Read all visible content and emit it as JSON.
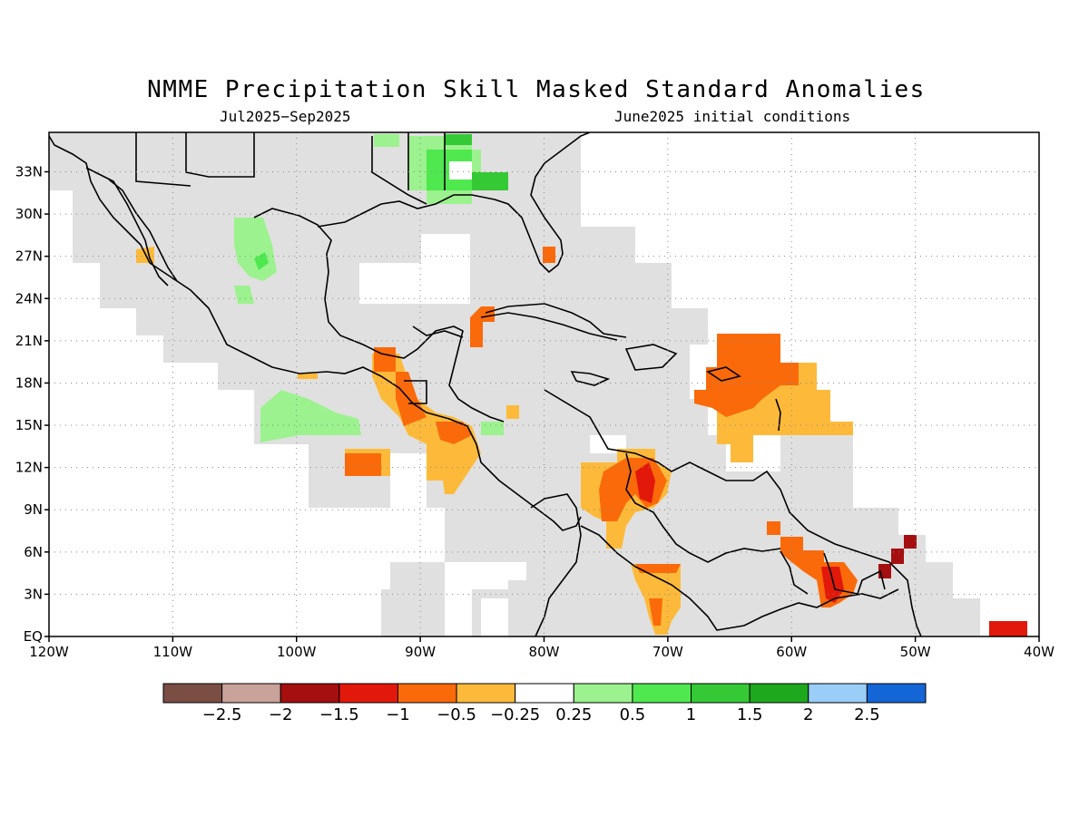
{
  "title": "NMME Precipitation Skill Masked Standard Anomalies",
  "subtitle_left": "Jul2025−Sep2025",
  "subtitle_right": "June2025 initial conditions",
  "map": {
    "lon_range": [
      -120,
      -40
    ],
    "lat_range": [
      0,
      35
    ],
    "lon_ticks": [
      {
        "value": -120,
        "label": "120W"
      },
      {
        "value": -110,
        "label": "110W"
      },
      {
        "value": -100,
        "label": "100W"
      },
      {
        "value": -90,
        "label": "90W"
      },
      {
        "value": -80,
        "label": "80W"
      },
      {
        "value": -70,
        "label": "70W"
      },
      {
        "value": -60,
        "label": "60W"
      },
      {
        "value": -50,
        "label": "50W"
      },
      {
        "value": -40,
        "label": "40W"
      }
    ],
    "lat_ticks": [
      {
        "value": 0,
        "label": "EQ"
      },
      {
        "value": 3,
        "label": "3N"
      },
      {
        "value": 6,
        "label": "6N"
      },
      {
        "value": 9,
        "label": "9N"
      },
      {
        "value": 12,
        "label": "12N"
      },
      {
        "value": 15,
        "label": "15N"
      },
      {
        "value": 18,
        "label": "18N"
      },
      {
        "value": 21,
        "label": "21N"
      },
      {
        "value": 24,
        "label": "24N"
      },
      {
        "value": 27,
        "label": "27N"
      },
      {
        "value": 30,
        "label": "30N"
      },
      {
        "value": 33,
        "label": "33N"
      }
    ],
    "grid": "dotted",
    "mask_color": "#e0e0e0"
  },
  "colorbar": {
    "colors": [
      "#7a4e43",
      "#c9a29a",
      "#a50f0f",
      "#e2180b",
      "#fa6a0a",
      "#fdba3a",
      "#ffffff",
      "#9cf28e",
      "#4fe84f",
      "#35c935",
      "#1ea81e",
      "#9acdf7",
      "#1466d6"
    ],
    "labels": [
      "−2.5",
      "−2",
      "−1.5",
      "−1",
      "−0.5",
      "−0.25",
      "0.25",
      "0.5",
      "1",
      "1.5",
      "2",
      "2.5"
    ]
  },
  "anomaly_patches": [
    {
      "name": "gulf-coast-wet",
      "color": "#4fe84f",
      "category": "0.5 to 1"
    },
    {
      "name": "gulf-coast-wet-strong",
      "color": "#35c935",
      "category": "1 to 1.5"
    },
    {
      "name": "mexico-sierra-wet",
      "color": "#9cf28e",
      "category": "0.25 to 0.5"
    },
    {
      "name": "pacific-offshore-wet",
      "color": "#9cf28e",
      "category": "0.25 to 0.5"
    },
    {
      "name": "central-america-dry",
      "color": "#fdba3a",
      "category": "-0.5 to -0.25"
    },
    {
      "name": "caribbean-east-dry",
      "color": "#fa6a0a",
      "category": "-1 to -0.5"
    },
    {
      "name": "colombia-venezuela-dry",
      "color": "#fa6a0a",
      "category": "-1 to -0.5"
    },
    {
      "name": "guianas-dry-strong",
      "color": "#a50f0f",
      "category": "-2 to -1.5"
    },
    {
      "name": "atlantic-equatorial-dry",
      "color": "#e2180b",
      "category": "-1.5 to -1"
    }
  ]
}
